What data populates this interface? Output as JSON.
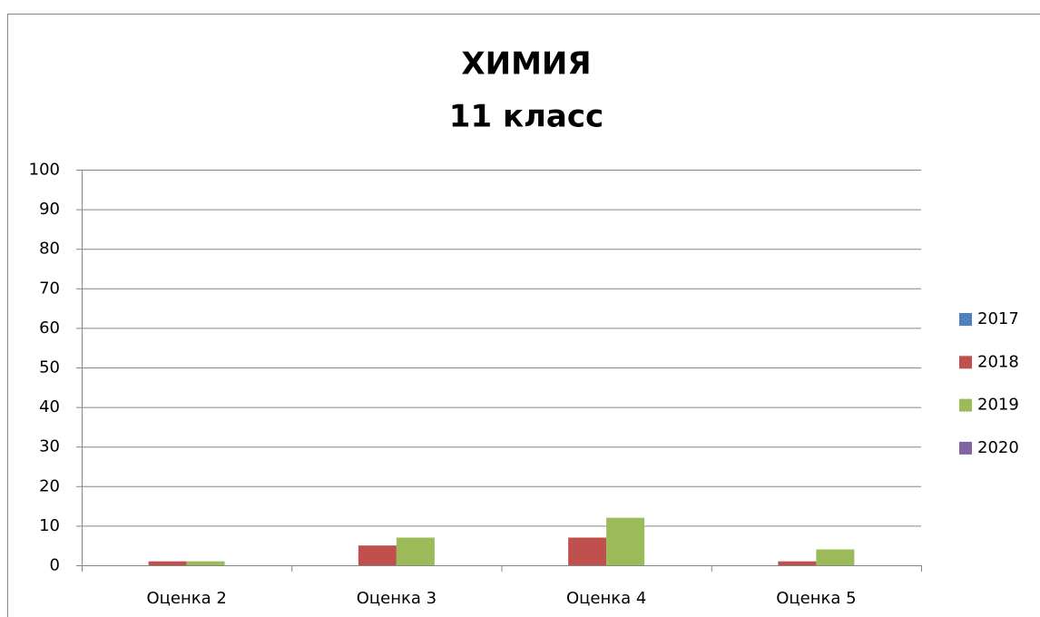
{
  "chart_data": {
    "type": "bar",
    "title": "ХИМИЯ",
    "subtitle": "11 класс",
    "categories": [
      "Оценка 2",
      "Оценка 3",
      "Оценка 4",
      "Оценка 5"
    ],
    "series": [
      {
        "name": "2017",
        "color": "#4f81bd",
        "values": [
          0,
          0,
          0,
          0
        ]
      },
      {
        "name": "2018",
        "color": "#c0504d",
        "values": [
          1,
          5,
          7,
          1
        ]
      },
      {
        "name": "2019",
        "color": "#9bbb59",
        "values": [
          1,
          7,
          12,
          4
        ]
      },
      {
        "name": "2020",
        "color": "#8064a2",
        "values": [
          0,
          0,
          0,
          0
        ]
      }
    ],
    "ylim": [
      0,
      100
    ],
    "yticks": [
      0,
      10,
      20,
      30,
      40,
      50,
      60,
      70,
      80,
      90,
      100
    ],
    "grid": true,
    "legend": "right"
  }
}
